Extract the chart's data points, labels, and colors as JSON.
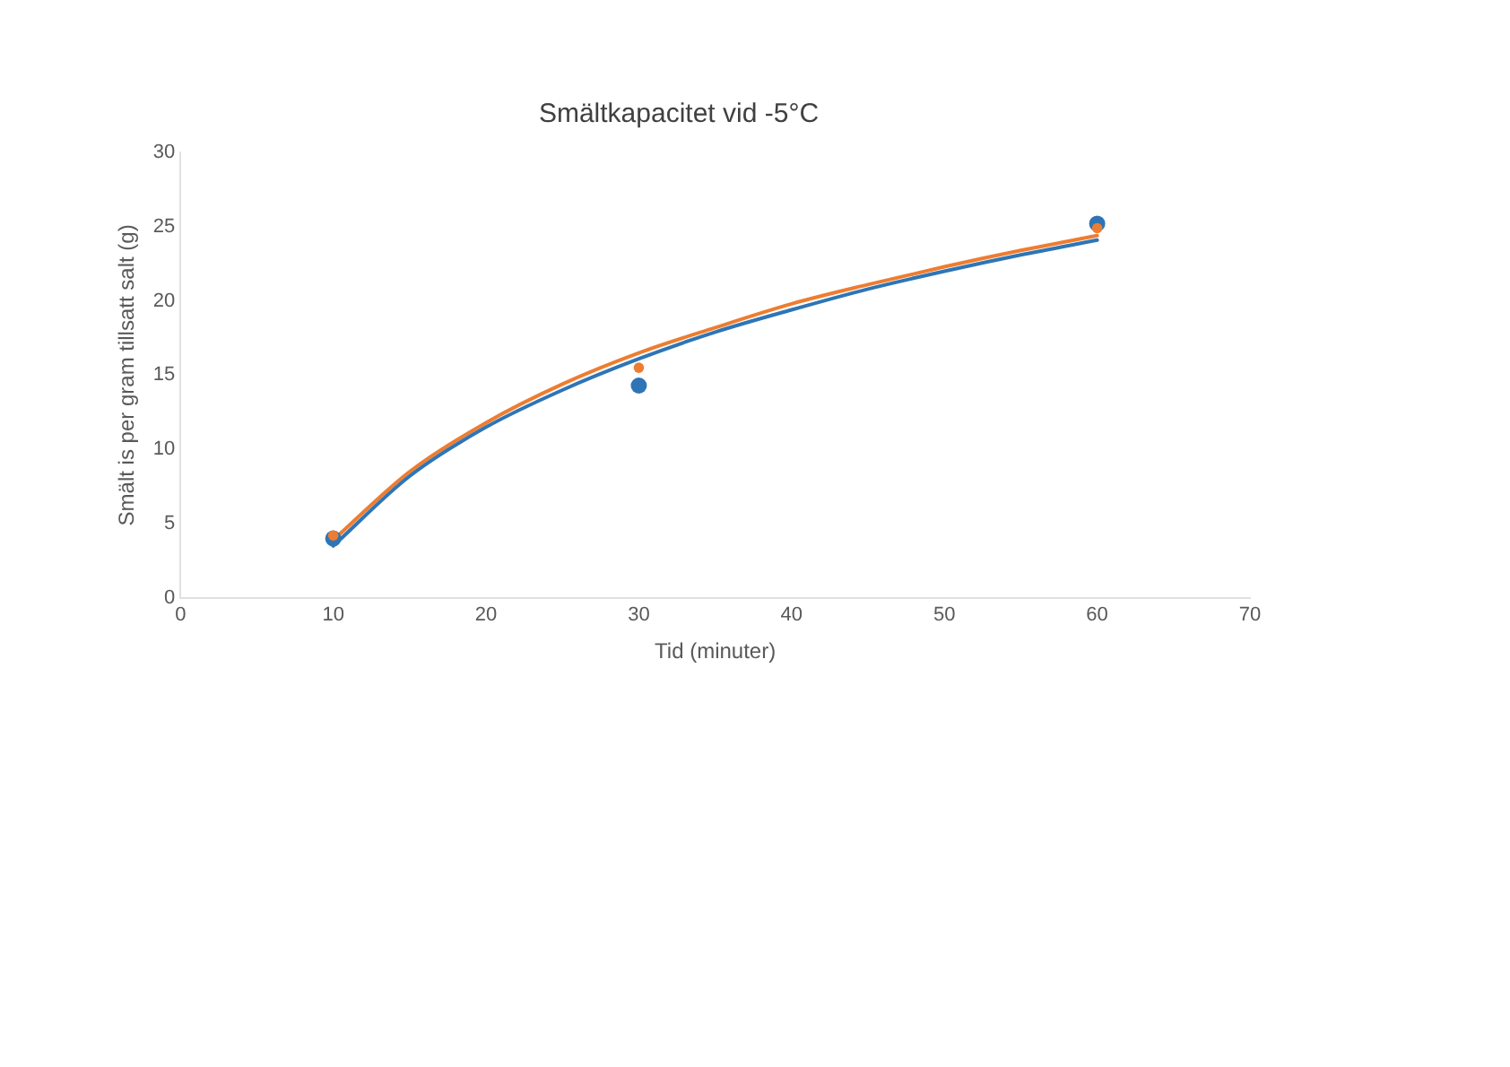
{
  "chart_data": {
    "type": "scatter",
    "title": "Smältkapacitet vid -5°C",
    "xlabel": "Tid (minuter)",
    "ylabel": "Smält is per gram tillsatt salt (g)",
    "xlim": [
      0,
      70
    ],
    "xticks": [
      0,
      10,
      20,
      30,
      40,
      50,
      60,
      70
    ],
    "ylim": [
      0,
      30
    ],
    "yticks": [
      0,
      5,
      10,
      15,
      20,
      25,
      30
    ],
    "grid": false,
    "legend": false,
    "series": [
      {
        "marker": "circle",
        "color": "#2e75b6",
        "x": [
          10,
          30,
          60
        ],
        "values": [
          4.0,
          14.3,
          25.2
        ]
      },
      {
        "marker": "circle",
        "color": "#ed7d31",
        "x": [
          10,
          30,
          60
        ],
        "values": [
          4.2,
          15.5,
          24.9
        ]
      },
      {
        "type": "line",
        "marker": "none",
        "color": "#2e75b6",
        "x": [
          10,
          15,
          20,
          25,
          30,
          35,
          40,
          45,
          50,
          55,
          60
        ],
        "values": [
          3.5,
          8.2,
          11.5,
          14.0,
          16.1,
          17.9,
          19.4,
          20.8,
          22.0,
          23.1,
          24.1
        ]
      },
      {
        "type": "line",
        "marker": "none",
        "color": "#ed7d31",
        "x": [
          10,
          15,
          20,
          25,
          30,
          35,
          40,
          45,
          50,
          55,
          60
        ],
        "values": [
          3.9,
          8.5,
          11.8,
          14.4,
          16.5,
          18.2,
          19.8,
          21.1,
          22.3,
          23.4,
          24.4
        ]
      }
    ]
  }
}
